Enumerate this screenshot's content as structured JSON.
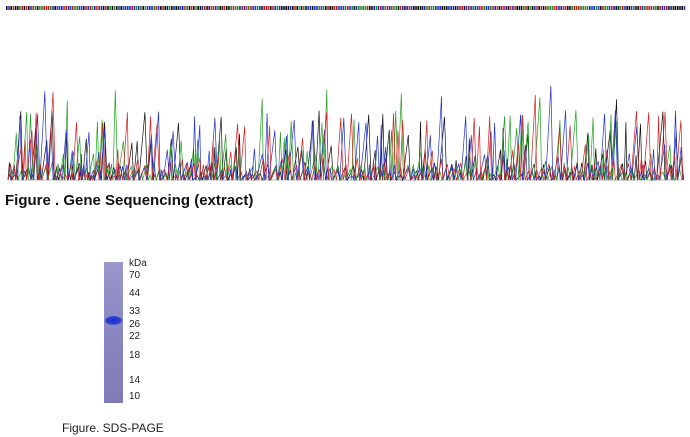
{
  "sequencing": {
    "caption": "Figure . Gene Sequencing (extract)"
  },
  "gel": {
    "unit": "kDa",
    "markers": [
      70,
      44,
      33,
      26,
      22,
      18,
      14,
      10
    ],
    "caption": "Figure. SDS-PAGE"
  }
}
